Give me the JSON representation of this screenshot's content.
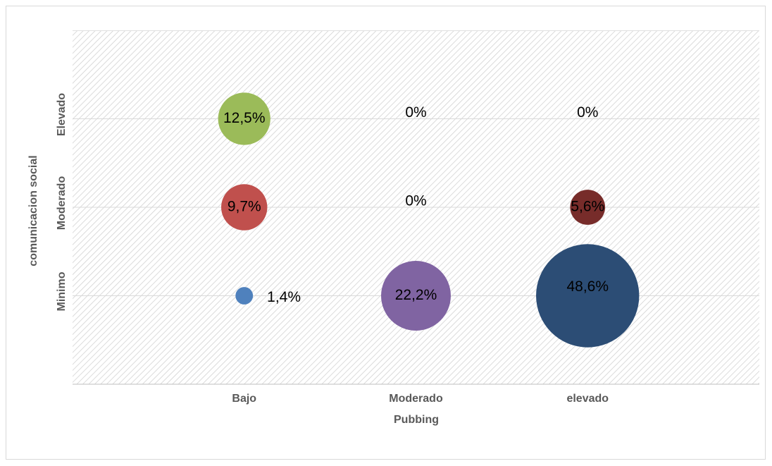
{
  "chart_data": {
    "type": "bubble",
    "x_title": "Pubbing",
    "y_title": "comunicacion social",
    "categories": [
      "Bajo",
      "Moderado",
      "elevado"
    ],
    "y_categories": [
      "Minimo",
      "Moderado",
      "Elevado"
    ],
    "values": [
      [
        1.4,
        22.2,
        48.6
      ],
      [
        9.7,
        0,
        5.6
      ],
      [
        12.5,
        0,
        0
      ]
    ],
    "value_labels": [
      [
        "1,4%",
        "22,2%",
        "48,6%"
      ],
      [
        "9,7%",
        "0%",
        "5,6%"
      ],
      [
        "12,5%",
        "0%",
        "0%"
      ]
    ],
    "colors": [
      [
        "#4f81bd",
        "#8064a2",
        "#2c4d75"
      ],
      [
        "#c0504d",
        null,
        "#772c2a"
      ],
      [
        "#9bbb59",
        null,
        null
      ]
    ],
    "grid": true
  }
}
